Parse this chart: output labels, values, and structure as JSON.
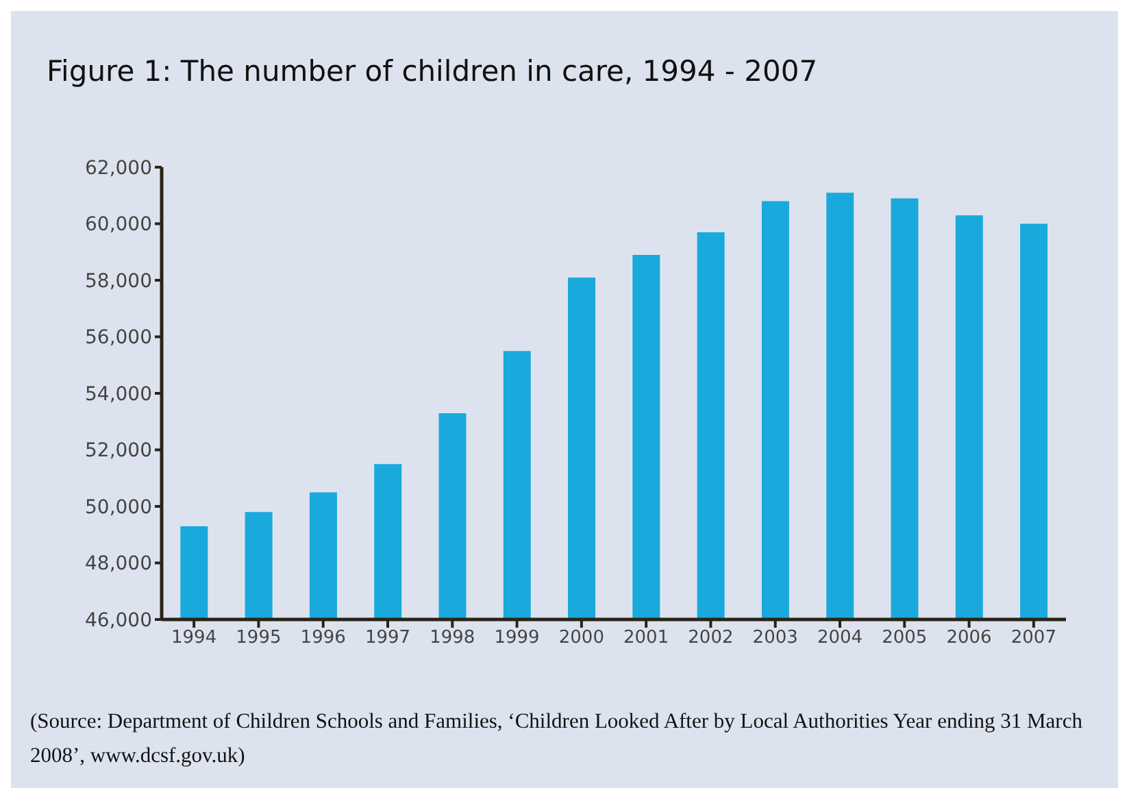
{
  "chart_data": {
    "type": "bar",
    "title": "Figure 1: The number of children in care, 1994 - 2007",
    "categories": [
      "1994",
      "1995",
      "1996",
      "1997",
      "1998",
      "1999",
      "2000",
      "2001",
      "2002",
      "2003",
      "2004",
      "2005",
      "2006",
      "2007"
    ],
    "values": [
      49300,
      49800,
      50500,
      51500,
      53300,
      55500,
      58100,
      58900,
      59700,
      60800,
      61100,
      60900,
      60300,
      60000
    ],
    "color": "#1aa9dc",
    "ylim": [
      46000,
      62000
    ],
    "yticks": [
      {
        "value": 46000,
        "label": "46,000"
      },
      {
        "value": 48000,
        "label": "48,000"
      },
      {
        "value": 50000,
        "label": "50,000"
      },
      {
        "value": 52000,
        "label": "52,000"
      },
      {
        "value": 54000,
        "label": "54,000"
      },
      {
        "value": 56000,
        "label": "56,000"
      },
      {
        "value": 58000,
        "label": "58,000"
      },
      {
        "value": 60000,
        "label": "60,000"
      },
      {
        "value": 62000,
        "label": "62,000"
      }
    ],
    "grid": false,
    "annotations": [
      "(Source: Department of Children Schools and Families, ‘Children Looked After by Local Authorities Year ending 31 March 2008’, www.dcsf.gov.uk)"
    ]
  }
}
